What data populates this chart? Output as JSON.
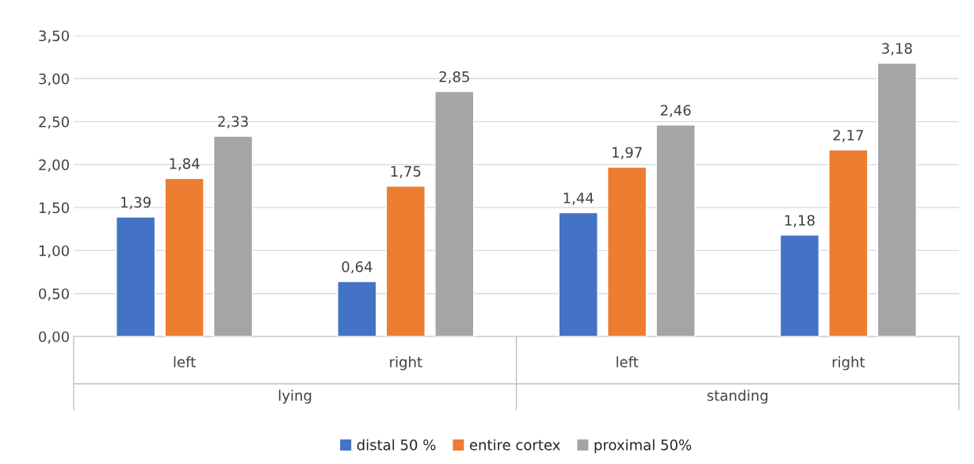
{
  "chart_data": {
    "type": "bar",
    "categories": [
      "left",
      "right",
      "left",
      "right"
    ],
    "annotations": [
      "lying",
      "standing"
    ],
    "series": [
      {
        "name": "distal 50 %",
        "color": "#4472c4",
        "values": [
          1.39,
          0.64,
          1.44,
          1.18
        ],
        "value_labels": [
          "1,39",
          "0,64",
          "1,44",
          "1,18"
        ]
      },
      {
        "name": "entire cortex",
        "color": "#ed7d31",
        "values": [
          1.84,
          1.75,
          1.97,
          2.17
        ],
        "value_labels": [
          "1,84",
          "1,75",
          "1,97",
          "2,17"
        ]
      },
      {
        "name": "proximal 50%",
        "color": "#a5a5a5",
        "values": [
          2.33,
          2.85,
          2.46,
          3.18
        ],
        "value_labels": [
          "2,33",
          "2,85",
          "2,46",
          "3,18"
        ]
      }
    ],
    "ylim": [
      0,
      3.5
    ],
    "yticks": [
      {
        "value": 0,
        "label": "0,00"
      },
      {
        "value": 0.5,
        "label": "0,50"
      },
      {
        "value": 1,
        "label": "1,00"
      },
      {
        "value": 1.5,
        "label": "1,50"
      },
      {
        "value": 2,
        "label": "2,00"
      },
      {
        "value": 2.5,
        "label": "2,50"
      },
      {
        "value": 3,
        "label": "3,00"
      },
      {
        "value": 3.5,
        "label": "3,50"
      }
    ],
    "grid": "y",
    "legend": "bottom"
  }
}
